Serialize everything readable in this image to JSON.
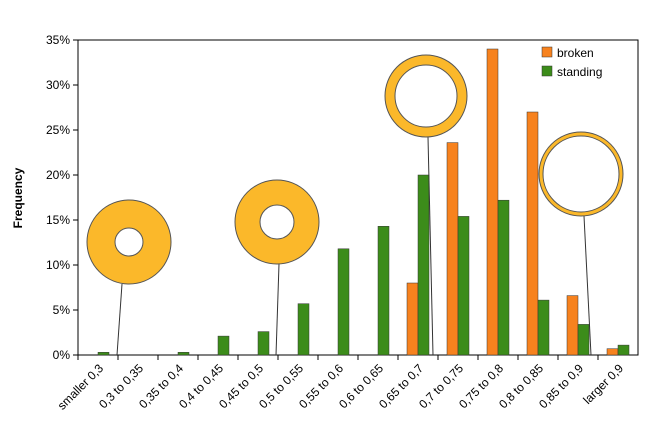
{
  "chart_data": {
    "type": "bar",
    "y_label": "Frequency",
    "categories": [
      "smaller 0,3",
      "0,3 to 0,35",
      "0,35 to 0,4",
      "0,4 to 0,45",
      "0,45 to 0,5",
      "0,5 to 0,55",
      "0,55 to 0,6",
      "0,6 to 0,65",
      "0,65 to 0,7",
      "0,7 to 0,75",
      "0,75 to 0,8",
      "0,8 to 0,85",
      "0,85 to 0,9",
      "larger 0,9"
    ],
    "series": [
      {
        "name": "broken",
        "color": "#f7821e",
        "values": [
          0,
          0,
          0,
          0,
          0,
          0,
          0,
          0,
          8,
          23.6,
          34,
          27,
          6.6,
          0.7
        ]
      },
      {
        "name": "standing",
        "color": "#3c8c1a",
        "values": [
          0.3,
          0,
          0.3,
          2.1,
          2.6,
          5.7,
          11.8,
          14.3,
          20,
          15.4,
          17.2,
          6.1,
          3.4,
          1.1
        ]
      }
    ],
    "ylim": [
      0,
      35
    ],
    "yticks": [
      {
        "value": 0,
        "label": "0%"
      },
      {
        "value": 5,
        "label": "5%"
      },
      {
        "value": 10,
        "label": "10%"
      },
      {
        "value": 15,
        "label": "15%"
      },
      {
        "value": 20,
        "label": "20%"
      },
      {
        "value": 25,
        "label": "25%"
      },
      {
        "value": 30,
        "label": "30%"
      },
      {
        "value": 35,
        "label": "35%"
      }
    ]
  }
}
